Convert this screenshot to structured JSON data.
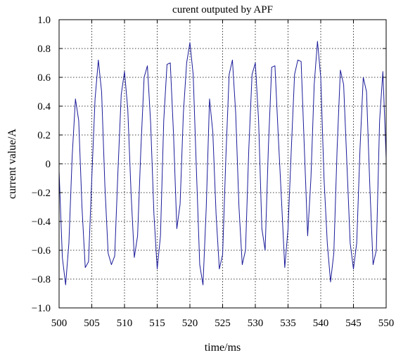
{
  "chart_data": {
    "type": "line",
    "title": "curent outputed by APF",
    "xlabel": "time/ms",
    "ylabel": "current value/A",
    "xlim": [
      500,
      550
    ],
    "ylim": [
      -1.0,
      1.0
    ],
    "xticks": [
      500,
      505,
      510,
      515,
      520,
      525,
      530,
      535,
      540,
      545,
      550
    ],
    "xtick_labels": [
      "500",
      "505",
      "510",
      "515",
      "520",
      "525",
      "530",
      "535",
      "540",
      "545",
      "550"
    ],
    "yticks": [
      1.0,
      0.8,
      0.6,
      0.4,
      0.2,
      0,
      -0.2,
      -0.4,
      -0.6,
      -0.8,
      -1.0
    ],
    "ytick_labels": [
      "1.0",
      "0.8",
      "0.6",
      "0.4",
      "0.2",
      "0",
      "−0.2",
      "−0.4",
      "−0.6",
      "−0.8",
      "−1.0"
    ],
    "grid": true,
    "series": [
      {
        "color": "#1a1a99",
        "x": [
          500.0,
          500.5,
          501.0,
          501.5,
          502.0,
          502.5,
          503.0,
          503.5,
          504.0,
          504.5,
          505.0,
          505.5,
          506.0,
          506.5,
          507.0,
          507.5,
          508.0,
          508.5,
          509.0,
          509.5,
          510.0,
          510.5,
          511.0,
          511.5,
          512.0,
          512.5,
          513.0,
          513.5,
          514.0,
          514.5,
          515.0,
          515.5,
          516.0,
          516.5,
          517.0,
          517.5,
          518.0,
          518.5,
          519.0,
          519.5,
          520.0,
          520.5,
          521.0,
          521.5,
          522.0,
          522.5,
          523.0,
          523.5,
          524.0,
          524.5,
          525.0,
          525.5,
          526.0,
          526.5,
          527.0,
          527.5,
          528.0,
          528.5,
          529.0,
          529.5,
          530.0,
          530.5,
          531.0,
          531.5,
          532.0,
          532.5,
          533.0,
          533.5,
          534.0,
          534.5,
          535.0,
          535.5,
          536.0,
          536.5,
          537.0,
          537.5,
          538.0,
          538.5,
          539.0,
          539.5,
          540.0,
          540.5,
          541.0,
          541.5,
          542.0,
          542.5,
          543.0,
          543.5,
          544.0,
          544.5,
          545.0,
          545.5,
          546.0,
          546.5,
          547.0,
          547.5,
          548.0,
          548.5,
          549.0,
          549.5,
          550.0
        ],
        "y": [
          -0.05,
          -0.65,
          -0.84,
          -0.55,
          0.05,
          0.45,
          0.3,
          -0.3,
          -0.72,
          -0.68,
          -0.1,
          0.45,
          0.72,
          0.5,
          -0.15,
          -0.62,
          -0.7,
          -0.64,
          -0.05,
          0.48,
          0.64,
          0.38,
          -0.2,
          -0.65,
          -0.5,
          0.1,
          0.6,
          0.68,
          0.28,
          -0.35,
          -0.73,
          -0.5,
          0.3,
          0.69,
          0.7,
          0.2,
          -0.45,
          -0.28,
          0.35,
          0.7,
          0.84,
          0.62,
          -0.05,
          -0.7,
          -0.84,
          -0.3,
          0.45,
          0.22,
          -0.35,
          -0.73,
          -0.63,
          0.05,
          0.62,
          0.72,
          0.35,
          -0.3,
          -0.7,
          -0.6,
          0.1,
          0.62,
          0.7,
          0.3,
          -0.45,
          -0.6,
          0.12,
          0.67,
          0.68,
          0.2,
          -0.25,
          -0.72,
          -0.45,
          0.1,
          0.62,
          0.72,
          0.71,
          0.1,
          -0.5,
          -0.1,
          0.55,
          0.85,
          0.6,
          -0.1,
          -0.55,
          -0.82,
          -0.62,
          0.1,
          0.65,
          0.55,
          0.0,
          -0.55,
          -0.73,
          -0.55,
          0.1,
          0.6,
          0.5,
          -0.15,
          -0.7,
          -0.6,
          0.3,
          0.64,
          0.04
        ]
      }
    ]
  }
}
